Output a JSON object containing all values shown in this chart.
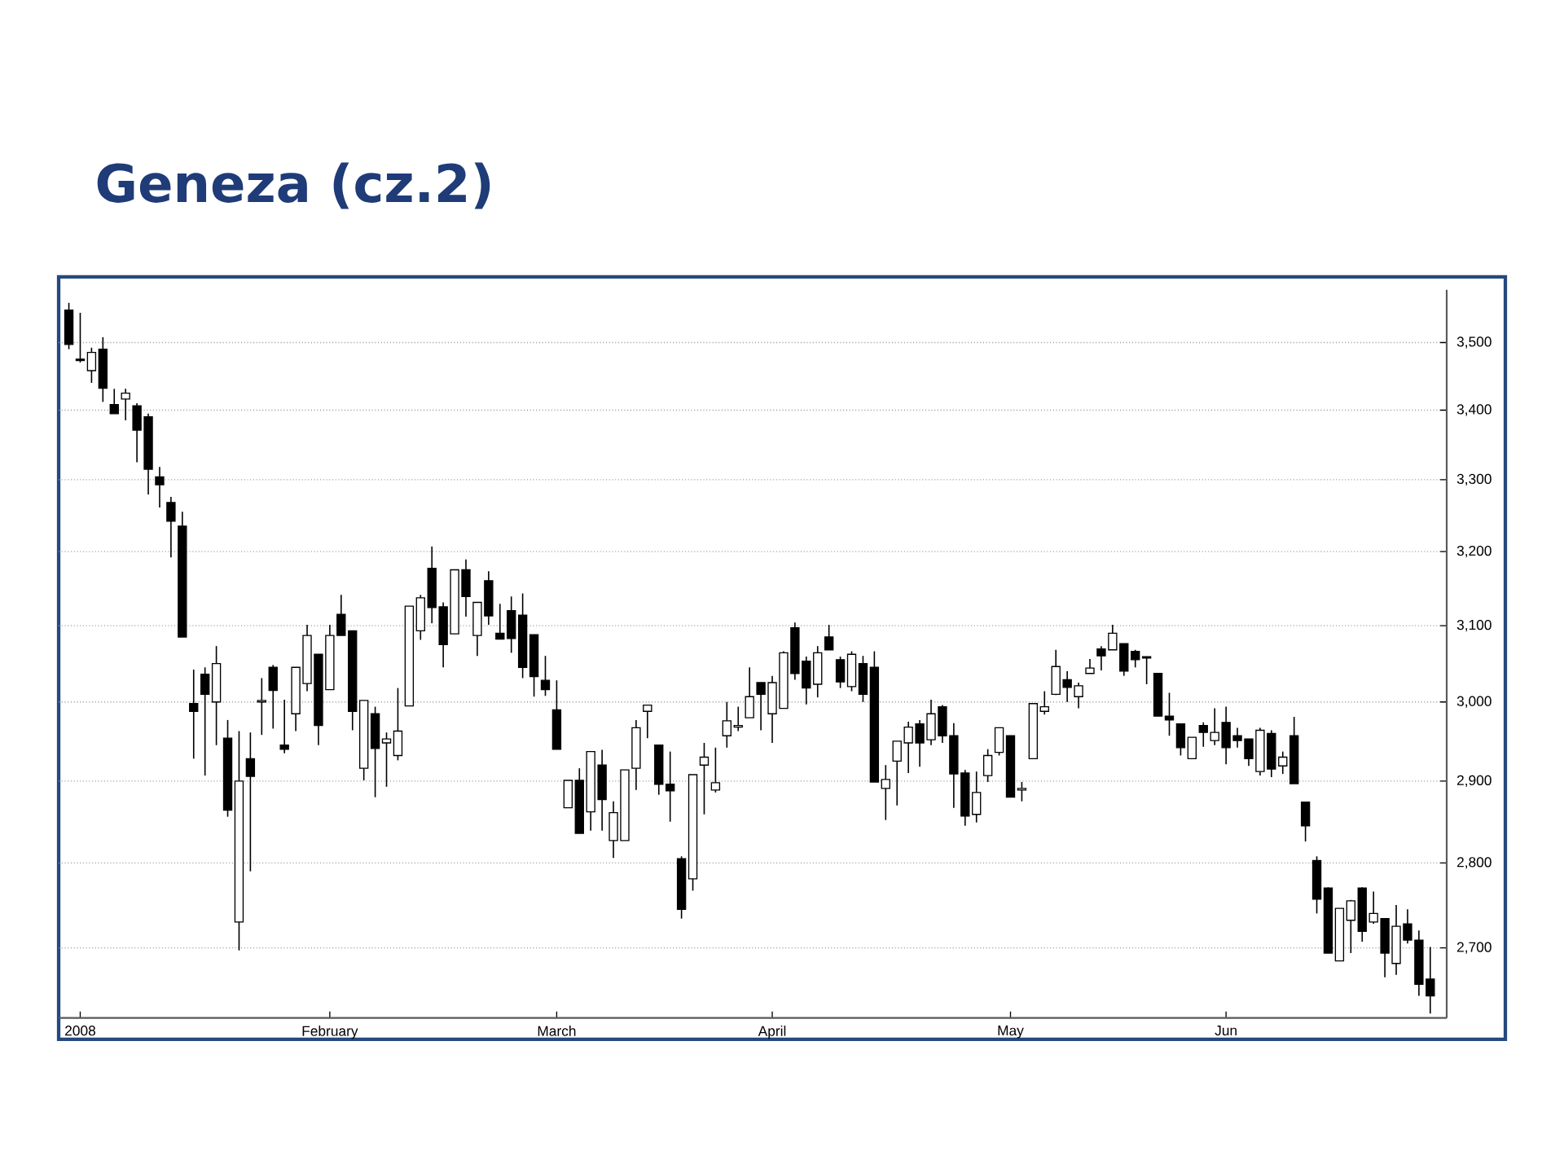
{
  "chart_data": {
    "type": "candlestick",
    "title": "Geneza (cz.2)",
    "categories": [
      null,
      "2008",
      null,
      null,
      null,
      null,
      null,
      null,
      null,
      null,
      null,
      null,
      null,
      null,
      null,
      null,
      null,
      null,
      null,
      null,
      null,
      null,
      null,
      "February",
      null,
      null,
      null,
      null,
      null,
      null,
      null,
      null,
      null,
      null,
      null,
      null,
      null,
      null,
      null,
      null,
      null,
      null,
      null,
      "March",
      null,
      null,
      null,
      null,
      null,
      null,
      null,
      null,
      null,
      null,
      null,
      null,
      null,
      null,
      null,
      null,
      null,
      null,
      "April",
      null,
      null,
      null,
      null,
      null,
      null,
      null,
      null,
      null,
      null,
      null,
      null,
      null,
      null,
      null,
      null,
      null,
      null,
      null,
      null,
      "May",
      null,
      null,
      null,
      null,
      null,
      null,
      null,
      null,
      null,
      null,
      null,
      null,
      null,
      null,
      null,
      null,
      null,
      null,
      "Jun",
      null,
      null,
      null,
      null,
      null,
      null,
      null,
      null,
      null,
      null,
      null,
      null,
      null,
      null,
      null,
      null,
      null,
      null
    ],
    "ohlc": [
      [
        3549,
        3560,
        3490,
        3497
      ],
      [
        3475,
        3545,
        3470,
        3473
      ],
      [
        3458,
        3492,
        3440,
        3485
      ],
      [
        3490,
        3508,
        3412,
        3432
      ],
      [
        3408,
        3431,
        3395,
        3395
      ],
      [
        3416,
        3431,
        3385,
        3425
      ],
      [
        3406,
        3410,
        3325,
        3371
      ],
      [
        3390,
        3395,
        3279,
        3315
      ],
      [
        3304,
        3318,
        3261,
        3293
      ],
      [
        3268,
        3276,
        3192,
        3242
      ],
      [
        3235,
        3255,
        3085,
        3085
      ],
      [
        2998,
        3042,
        2928,
        2988
      ],
      [
        3036,
        3045,
        2907,
        3010
      ],
      [
        3000,
        3073,
        2945,
        3050
      ],
      [
        2954,
        2977,
        2856,
        2864
      ],
      [
        2730,
        2963,
        2697,
        2900
      ],
      [
        2928,
        2961,
        2790,
        2906
      ],
      [
        3000,
        3031,
        2958,
        3002
      ],
      [
        3045,
        3048,
        2966,
        3015
      ],
      [
        2945,
        3003,
        2935,
        2940
      ],
      [
        2985,
        3045,
        2963,
        3045
      ],
      [
        3024,
        3101,
        3014,
        3087
      ],
      [
        3062,
        3062,
        2945,
        2970
      ],
      [
        3016,
        3101,
        3016,
        3087
      ],
      [
        3115,
        3141,
        3087,
        3087
      ],
      [
        3093,
        3093,
        2964,
        2988
      ],
      [
        2916,
        3002,
        2901,
        3002
      ],
      [
        2985,
        2994,
        2880,
        2941
      ],
      [
        2948,
        2961,
        2893,
        2953
      ],
      [
        2932,
        3018,
        2926,
        2963
      ],
      [
        2995,
        3126,
        2995,
        3126
      ],
      [
        3093,
        3141,
        3081,
        3137
      ],
      [
        3177,
        3207,
        3103,
        3124
      ],
      [
        3125,
        3131,
        3045,
        3075
      ],
      [
        3089,
        3175,
        3089,
        3175
      ],
      [
        3175,
        3189,
        3112,
        3139
      ],
      [
        3087,
        3131,
        3060,
        3131
      ],
      [
        3160,
        3173,
        3101,
        3113
      ],
      [
        3090,
        3129,
        3082,
        3082
      ],
      [
        3120,
        3139,
        3064,
        3083
      ],
      [
        3114,
        3143,
        3031,
        3045
      ],
      [
        3088,
        3088,
        3007,
        3033
      ],
      [
        3028,
        3060,
        3008,
        3016
      ],
      [
        2990,
        3028,
        2940,
        2940
      ],
      [
        2867,
        2901,
        2867,
        2901
      ],
      [
        2901,
        2916,
        2836,
        2836
      ],
      [
        2862,
        2937,
        2839,
        2937
      ],
      [
        2920,
        2939,
        2839,
        2877
      ],
      [
        2827,
        2875,
        2806,
        2861
      ],
      [
        2827,
        2914,
        2827,
        2914
      ],
      [
        2916,
        2977,
        2889,
        2967
      ],
      [
        2988,
        2996,
        2954,
        2996
      ],
      [
        2945,
        2945,
        2883,
        2896
      ],
      [
        2896,
        2937,
        2850,
        2888
      ],
      [
        2805,
        2808,
        2734,
        2745
      ],
      [
        2781,
        2908,
        2767,
        2908
      ],
      [
        2920,
        2948,
        2859,
        2930
      ],
      [
        2889,
        2942,
        2886,
        2898
      ],
      [
        2957,
        3000,
        2942,
        2976
      ],
      [
        2968,
        2994,
        2963,
        2970
      ],
      [
        2980,
        3045,
        2980,
        3007
      ],
      [
        3025,
        3025,
        2964,
        3010
      ],
      [
        2985,
        3034,
        2948,
        3025
      ],
      [
        2992,
        3066,
        2992,
        3064
      ],
      [
        3097,
        3104,
        3029,
        3037
      ],
      [
        3053,
        3059,
        2997,
        3018
      ],
      [
        3023,
        3073,
        3006,
        3064
      ],
      [
        3085,
        3101,
        3068,
        3068
      ],
      [
        3055,
        3059,
        3018,
        3026
      ],
      [
        3020,
        3066,
        3014,
        3062
      ],
      [
        3050,
        3060,
        3000,
        3010
      ],
      [
        3045,
        3066,
        2899,
        2899
      ],
      [
        2891,
        2920,
        2852,
        2902
      ],
      [
        2925,
        2950,
        2870,
        2950
      ],
      [
        2948,
        2975,
        2910,
        2968
      ],
      [
        2972,
        2977,
        2918,
        2948
      ],
      [
        2952,
        3003,
        2945,
        2985
      ],
      [
        2994,
        2996,
        2948,
        2957
      ],
      [
        2957,
        2973,
        2867,
        2909
      ],
      [
        2910,
        2914,
        2845,
        2857
      ],
      [
        2859,
        2912,
        2849,
        2886
      ],
      [
        2907,
        2940,
        2899,
        2932
      ],
      [
        2936,
        2967,
        2932,
        2967
      ],
      [
        2957,
        2957,
        2880,
        2880
      ],
      [
        2889,
        2899,
        2875,
        2891
      ],
      [
        2928,
        2998,
        2928,
        2998
      ],
      [
        2988,
        3014,
        2984,
        2994
      ],
      [
        3010,
        3068,
        3009,
        3046
      ],
      [
        3029,
        3040,
        3000,
        3019
      ],
      [
        3007,
        3025,
        2992,
        3021
      ],
      [
        3037,
        3056,
        3037,
        3044
      ],
      [
        3069,
        3073,
        3041,
        3060
      ],
      [
        3068,
        3101,
        3068,
        3090
      ],
      [
        3076,
        3076,
        3034,
        3040
      ],
      [
        3066,
        3068,
        3045,
        3055
      ],
      [
        3059,
        3059,
        3023,
        3057
      ],
      [
        3037,
        3037,
        2982,
        2982
      ],
      [
        2982,
        3012,
        2957,
        2977
      ],
      [
        2972,
        2972,
        2932,
        2942
      ],
      [
        2928,
        2955,
        2928,
        2955
      ],
      [
        2970,
        2974,
        2943,
        2961
      ],
      [
        2951,
        2992,
        2945,
        2961
      ],
      [
        2974,
        2994,
        2921,
        2942
      ],
      [
        2957,
        2967,
        2942,
        2951
      ],
      [
        2953,
        2953,
        2919,
        2928
      ],
      [
        2912,
        2967,
        2907,
        2964
      ],
      [
        2960,
        2964,
        2905,
        2915
      ],
      [
        2919,
        2937,
        2909,
        2930
      ],
      [
        2957,
        2981,
        2897,
        2897
      ],
      [
        2874,
        2874,
        2826,
        2845
      ],
      [
        2803,
        2808,
        2740,
        2757
      ],
      [
        2770,
        2771,
        2694,
        2694
      ],
      [
        2685,
        2746,
        2685,
        2746
      ],
      [
        2732,
        2756,
        2694,
        2755
      ],
      [
        2770,
        2771,
        2707,
        2719
      ],
      [
        2730,
        2766,
        2728,
        2740
      ],
      [
        2734,
        2734,
        2666,
        2694
      ],
      [
        2682,
        2750,
        2669,
        2725
      ],
      [
        2728,
        2745,
        2705,
        2709
      ],
      [
        2709,
        2720,
        2645,
        2658
      ],
      [
        2664,
        2701,
        2625,
        2645
      ]
    ],
    "ylim": [
      2620,
      3580
    ],
    "yticks": [
      {
        "value": 2700,
        "label": "2,700"
      },
      {
        "value": 2800,
        "label": "2,800"
      },
      {
        "value": 2900,
        "label": "2,900"
      },
      {
        "value": 3000,
        "label": "3,000"
      },
      {
        "value": 3100,
        "label": "3,100"
      },
      {
        "value": 3200,
        "label": "3,200"
      },
      {
        "value": 3300,
        "label": "3,300"
      },
      {
        "value": 3400,
        "label": "3,400"
      },
      {
        "value": 3500,
        "label": "3,500"
      }
    ],
    "log": true,
    "grid": "y"
  }
}
